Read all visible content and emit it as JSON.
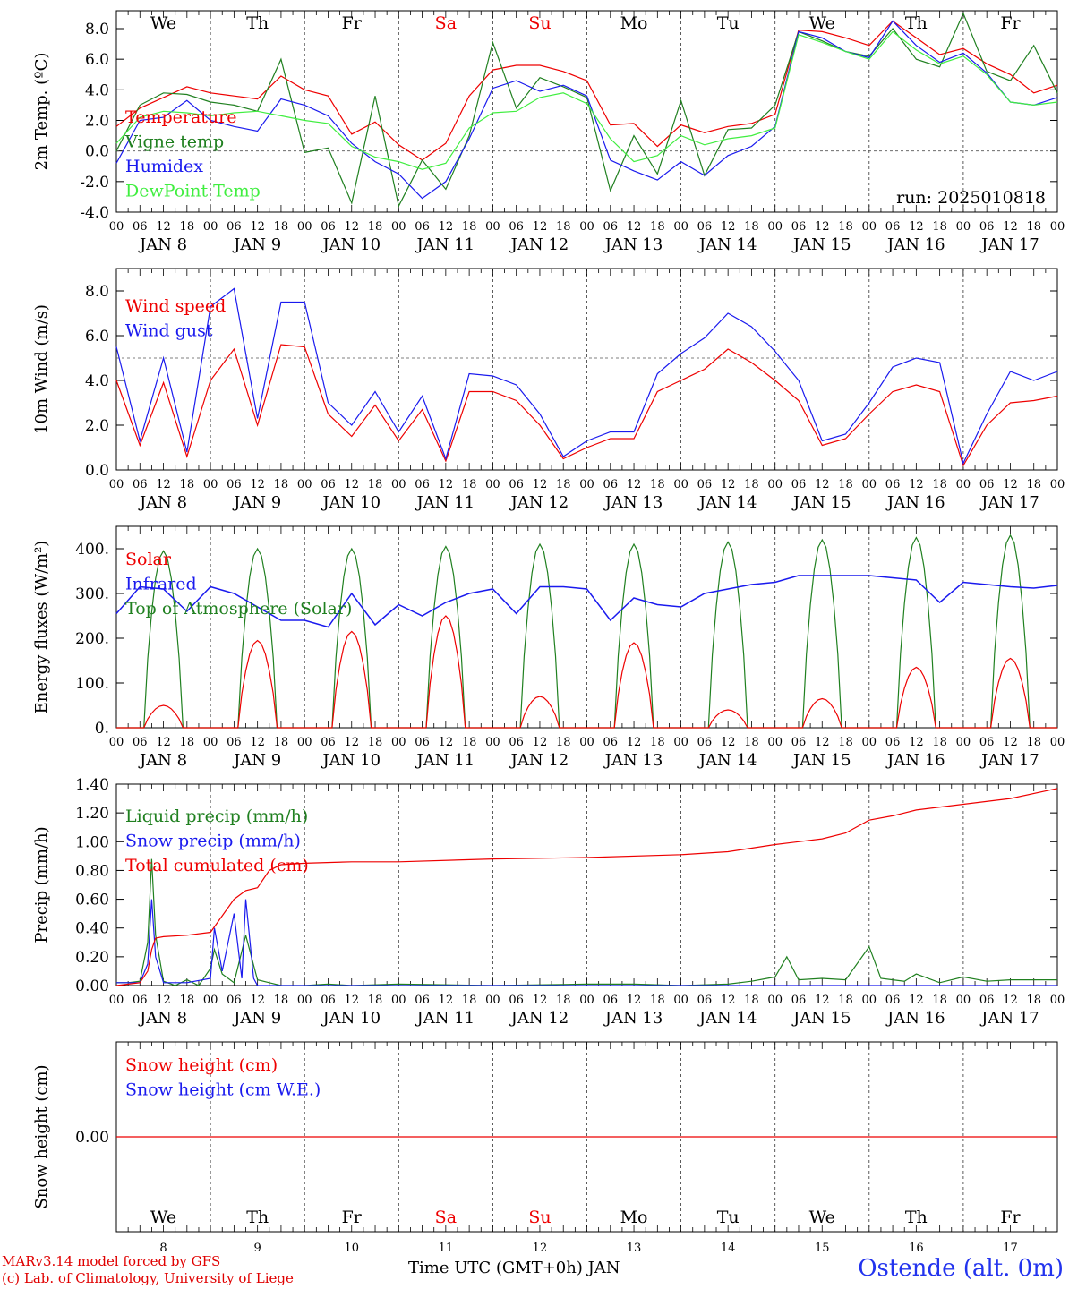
{
  "run_label": "run: 2025010818",
  "credits": [
    "MARv3.14 model forced by GFS",
    "(c) Lab. of Climatology, University of Liege"
  ],
  "station": "Ostende (alt. 0m)",
  "x_axis_title": "Time UTC (GMT+0h) JAN",
  "hour_ticks": [
    "00",
    "06",
    "12",
    "18"
  ],
  "day_labels": [
    "JAN  8",
    "JAN  9",
    "JAN 10",
    "JAN 11",
    "JAN 12",
    "JAN 13",
    "JAN 14",
    "JAN 15",
    "JAN 16",
    "JAN 17"
  ],
  "day_numbers": [
    "8",
    "9",
    "10",
    "11",
    "12",
    "13",
    "14",
    "15",
    "16",
    "17"
  ],
  "weekdays": [
    {
      "name": "We",
      "color": "#000000"
    },
    {
      "name": "Th",
      "color": "#000000"
    },
    {
      "name": "Fr",
      "color": "#000000"
    },
    {
      "name": "Sa",
      "color": "#ee0000"
    },
    {
      "name": "Su",
      "color": "#ee0000"
    },
    {
      "name": "Mo",
      "color": "#000000"
    },
    {
      "name": "Tu",
      "color": "#000000"
    },
    {
      "name": "We",
      "color": "#000000"
    },
    {
      "name": "Th",
      "color": "#000000"
    },
    {
      "name": "Fr",
      "color": "#000000"
    }
  ],
  "chart_data": [
    {
      "type": "line",
      "ylabel": "2m Temp. (ºC)",
      "ylim": [
        -4,
        9
      ],
      "yticks": [
        "-4.0",
        "-2.0",
        "0.0",
        "2.0",
        "4.0",
        "6.0",
        "8.0"
      ],
      "ytick_values": [
        -4,
        -2,
        0,
        2,
        4,
        6,
        8
      ],
      "ref_line": 0,
      "x_hours": [
        0,
        6,
        12,
        18,
        24,
        30,
        36,
        42,
        48,
        54,
        60,
        66,
        72,
        78,
        84,
        90,
        96,
        102,
        108,
        114,
        120,
        126,
        132,
        138,
        144,
        150,
        156,
        162,
        168,
        174,
        180,
        186,
        192,
        198,
        204,
        210,
        216,
        222,
        228,
        234,
        240
      ],
      "series": [
        {
          "name": "Temperature",
          "color": "#ee0000",
          "values": [
            1.6,
            2.8,
            3.5,
            4.2,
            3.8,
            3.6,
            3.4,
            4.9,
            4.0,
            3.6,
            1.1,
            1.9,
            0.4,
            -0.6,
            0.5,
            3.6,
            5.3,
            5.6,
            5.6,
            5.2,
            4.6,
            1.7,
            1.8,
            0.3,
            1.7,
            1.2,
            1.6,
            1.8,
            2.4,
            7.9,
            7.8,
            7.4,
            6.9,
            8.5,
            7.4,
            6.3,
            6.7,
            5.7,
            5.0,
            3.8,
            4.3
          ]
        },
        {
          "name": "Vigne temp",
          "color": "#208020",
          "values": [
            0.0,
            3.0,
            3.8,
            3.7,
            3.2,
            3.0,
            2.6,
            6.0,
            -0.1,
            0.2,
            -3.4,
            3.6,
            -3.6,
            -0.6,
            -2.5,
            1.0,
            7.1,
            2.8,
            4.8,
            4.2,
            3.5,
            -2.6,
            1.0,
            -1.5,
            3.3,
            -1.6,
            1.4,
            1.5,
            3.0,
            7.8,
            7.2,
            6.5,
            6.2,
            8.0,
            6.0,
            5.5,
            9.0,
            5.2,
            4.6,
            6.9,
            3.8
          ]
        },
        {
          "name": "Humidex",
          "color": "#1a1aee",
          "values": [
            -0.8,
            2.0,
            2.2,
            3.3,
            2.0,
            1.6,
            1.3,
            3.4,
            3.0,
            2.3,
            0.5,
            -0.7,
            -1.5,
            -3.1,
            -2.0,
            0.8,
            4.1,
            4.6,
            3.9,
            4.3,
            3.6,
            -0.6,
            -1.3,
            -1.9,
            -0.7,
            -1.6,
            -0.3,
            0.3,
            1.6,
            7.8,
            7.4,
            6.5,
            6.1,
            8.5,
            6.9,
            5.8,
            6.4,
            5.1,
            3.2,
            3.0,
            3.5
          ]
        },
        {
          "name": "DewPoint Temp",
          "color": "#40ee40",
          "values": [
            0.5,
            2.2,
            2.6,
            2.5,
            2.3,
            2.5,
            2.6,
            2.3,
            2.0,
            1.8,
            0.3,
            -0.4,
            -0.7,
            -1.2,
            -0.8,
            1.5,
            2.5,
            2.6,
            3.5,
            3.8,
            3.1,
            0.8,
            -0.7,
            -0.3,
            1.0,
            0.4,
            0.8,
            1.0,
            1.5,
            7.6,
            7.1,
            6.5,
            6.0,
            7.8,
            6.6,
            5.7,
            6.2,
            5.0,
            3.2,
            3.0,
            3.2
          ]
        }
      ]
    },
    {
      "type": "line",
      "ylabel": "10m Wind (m/s)",
      "ylim": [
        0,
        9
      ],
      "yticks": [
        "0.0",
        "2.0",
        "4.0",
        "6.0",
        "8.0"
      ],
      "ytick_values": [
        0,
        2,
        4,
        6,
        8
      ],
      "ref_line": 5,
      "x_hours": [
        0,
        6,
        12,
        18,
        24,
        30,
        36,
        42,
        48,
        54,
        60,
        66,
        72,
        78,
        84,
        90,
        96,
        102,
        108,
        114,
        120,
        126,
        132,
        138,
        144,
        150,
        156,
        162,
        168,
        174,
        180,
        186,
        192,
        198,
        204,
        210,
        216,
        222,
        228,
        234,
        240
      ],
      "series": [
        {
          "name": "Wind speed",
          "color": "#ee0000",
          "values": [
            4.0,
            1.1,
            3.9,
            0.6,
            4.0,
            5.4,
            2.0,
            5.6,
            5.5,
            2.5,
            1.5,
            2.9,
            1.3,
            2.7,
            0.4,
            3.5,
            3.5,
            3.1,
            2.0,
            0.5,
            1.0,
            1.4,
            1.4,
            3.5,
            4.0,
            4.5,
            5.4,
            4.8,
            4.0,
            3.1,
            1.1,
            1.4,
            2.5,
            3.5,
            3.8,
            3.5,
            0.2,
            2.0,
            3.0,
            3.1,
            3.3
          ]
        },
        {
          "name": "Wind gust",
          "color": "#1a1aee",
          "values": [
            5.5,
            1.3,
            5.0,
            0.8,
            7.3,
            8.1,
            2.3,
            7.5,
            7.5,
            3.0,
            2.0,
            3.5,
            1.7,
            3.3,
            0.5,
            4.3,
            4.2,
            3.8,
            2.5,
            0.6,
            1.3,
            1.7,
            1.7,
            4.3,
            5.2,
            5.9,
            7.0,
            6.4,
            5.3,
            4.0,
            1.3,
            1.6,
            3.0,
            4.6,
            5.0,
            4.8,
            0.3,
            2.5,
            4.4,
            4.0,
            4.4
          ]
        }
      ]
    },
    {
      "type": "line",
      "ylabel": "Energy fluxes (W/m²)",
      "ylim": [
        0,
        450
      ],
      "yticks": [
        "0.",
        "100.",
        "200.",
        "300.",
        "400."
      ],
      "ytick_values": [
        0,
        100,
        200,
        300,
        400
      ],
      "solar_peaks": [
        50,
        195,
        215,
        250,
        70,
        190,
        40,
        65,
        135,
        155
      ],
      "toa_peaks": [
        395,
        400,
        400,
        405,
        410,
        410,
        415,
        420,
        425,
        430
      ],
      "series": [
        {
          "name": "Solar",
          "color": "#ee0000"
        },
        {
          "name": "Infrared",
          "color": "#1a1aee",
          "x_hours": [
            0,
            6,
            12,
            18,
            24,
            30,
            36,
            42,
            48,
            54,
            60,
            66,
            72,
            78,
            84,
            90,
            96,
            102,
            108,
            114,
            120,
            126,
            132,
            138,
            144,
            150,
            156,
            162,
            168,
            174,
            180,
            186,
            192,
            198,
            204,
            210,
            216,
            222,
            228,
            234,
            240
          ],
          "values": [
            255,
            315,
            310,
            260,
            315,
            300,
            270,
            240,
            240,
            225,
            300,
            230,
            275,
            250,
            280,
            300,
            310,
            255,
            315,
            315,
            310,
            240,
            290,
            275,
            270,
            300,
            310,
            320,
            325,
            340,
            340,
            340,
            340,
            335,
            330,
            280,
            325,
            320,
            315,
            312,
            318
          ]
        },
        {
          "name": "Top of Atmosphere (Solar)",
          "color": "#208020"
        }
      ]
    },
    {
      "type": "line",
      "ylabel": "Precip (mm/h)",
      "ylim": [
        0,
        1.4
      ],
      "yticks": [
        "0.00",
        "0.20",
        "0.40",
        "0.60",
        "0.80",
        "1.00",
        "1.20",
        "1.40"
      ],
      "ytick_values": [
        0,
        0.2,
        0.4,
        0.6,
        0.8,
        1.0,
        1.2,
        1.4
      ],
      "series": [
        {
          "name": "Liquid precip (mm/h)",
          "color": "#208020",
          "x_hours": [
            0,
            3,
            6,
            8,
            9,
            10,
            12,
            15,
            18,
            21,
            24,
            25,
            27,
            30,
            33,
            36,
            39,
            42,
            48,
            54,
            60,
            72,
            96,
            120,
            132,
            144,
            156,
            162,
            168,
            171,
            174,
            180,
            186,
            192,
            195,
            198,
            201,
            204,
            210,
            216,
            222,
            228,
            240
          ],
          "values": [
            0.02,
            0.02,
            0.03,
            0.3,
            0.88,
            0.35,
            0.03,
            0.0,
            0.04,
            0.0,
            0.12,
            0.25,
            0.08,
            0.02,
            0.35,
            0.04,
            0.02,
            0.0,
            0.0,
            0.01,
            0.0,
            0.01,
            0.0,
            0.01,
            0.01,
            0.0,
            0.01,
            0.03,
            0.06,
            0.2,
            0.04,
            0.05,
            0.04,
            0.27,
            0.05,
            0.04,
            0.03,
            0.08,
            0.02,
            0.06,
            0.03,
            0.04,
            0.04
          ]
        },
        {
          "name": "Snow precip (mm/h)",
          "color": "#1a1aee",
          "x_hours": [
            0,
            3,
            6,
            8,
            9,
            10,
            12,
            18,
            24,
            25,
            27,
            30,
            32,
            33,
            35,
            36,
            42,
            48,
            60,
            72,
            96,
            120,
            144,
            168,
            240
          ],
          "values": [
            0.02,
            0.02,
            0.02,
            0.15,
            0.6,
            0.2,
            0.02,
            0.02,
            0.05,
            0.4,
            0.1,
            0.5,
            0.05,
            0.6,
            0.05,
            0.0,
            0.0,
            0.0,
            0.0,
            0.0,
            0.0,
            0.0,
            0.0,
            0.0,
            0.0
          ]
        },
        {
          "name": "Total cumulated (cm)",
          "color": "#ee0000",
          "x_hours": [
            0,
            6,
            8,
            9,
            10,
            12,
            18,
            24,
            30,
            33,
            36,
            39,
            42,
            48,
            60,
            72,
            96,
            120,
            144,
            156,
            168,
            174,
            180,
            186,
            192,
            198,
            204,
            216,
            228,
            240
          ],
          "values": [
            0.0,
            0.02,
            0.1,
            0.25,
            0.33,
            0.34,
            0.35,
            0.37,
            0.6,
            0.66,
            0.68,
            0.8,
            0.84,
            0.85,
            0.86,
            0.86,
            0.88,
            0.89,
            0.91,
            0.93,
            0.98,
            1.0,
            1.02,
            1.06,
            1.15,
            1.18,
            1.22,
            1.26,
            1.3,
            1.37
          ]
        }
      ]
    },
    {
      "type": "line",
      "ylabel": "Snow height (cm)",
      "yticks": [
        "0.00"
      ],
      "ytick_values": [
        0
      ],
      "series": [
        {
          "name": "Snow height (cm)",
          "color": "#ee0000",
          "value": 0
        },
        {
          "name": "Snow height (cm W.E.)",
          "color": "#1a1aee",
          "value": 0
        }
      ]
    }
  ]
}
